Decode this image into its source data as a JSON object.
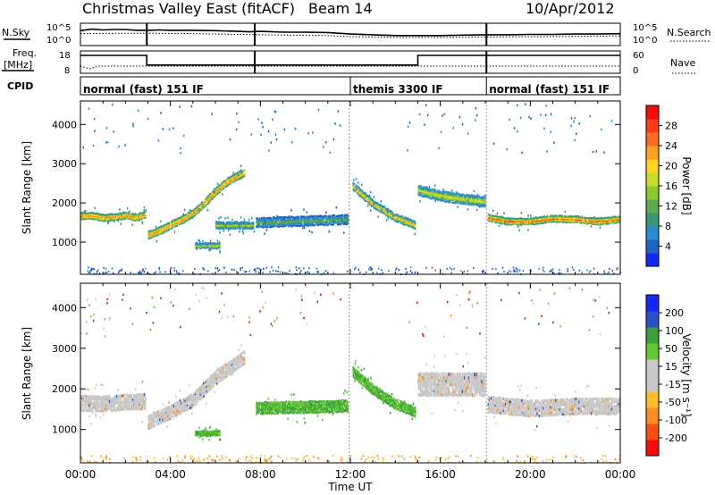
{
  "header": {
    "title": "Christmas Valley East (fitACF)",
    "beam": "Beam 14",
    "date": "10/Apr/2012"
  },
  "chart_data": [
    {
      "id": "noise-panel",
      "type": "line",
      "left_label": "N.Sky",
      "right_label": "N.Search",
      "y_ticks_left": [
        "10^5",
        "10^0"
      ],
      "y_ticks_right": [
        "10^5",
        "10^0"
      ],
      "ylim_log10": [
        0,
        5
      ],
      "series": [
        {
          "style": "solid",
          "x_hours": [
            0,
            0.5,
            1,
            1.5,
            2,
            2.5,
            3,
            3.5,
            4,
            5,
            6,
            7,
            7.5,
            8,
            9,
            10,
            11,
            12,
            13,
            14,
            15,
            16,
            17,
            18,
            19,
            20,
            21,
            22,
            23,
            24
          ],
          "values_log10": [
            3.5,
            3.9,
            3.7,
            3.8,
            3.8,
            3.6,
            3.6,
            3.7,
            3.6,
            3.6,
            3.5,
            3.3,
            3.2,
            3.3,
            3.1,
            3.1,
            3.0,
            2.6,
            2.4,
            2.2,
            2.2,
            2.2,
            2.3,
            2.4,
            2.4,
            2.5,
            2.5,
            2.6,
            2.6,
            2.7
          ]
        },
        {
          "style": "dotted",
          "x_hours": [
            0,
            2,
            3,
            5,
            7,
            9,
            11,
            12,
            14,
            16,
            18,
            20,
            22,
            24
          ],
          "values_log10": [
            2.7,
            2.8,
            2.8,
            2.7,
            2.5,
            2.3,
            2.2,
            1.9,
            1.7,
            1.7,
            1.8,
            1.9,
            2.0,
            2.1
          ]
        }
      ],
      "gaps_hours": [
        2.95,
        7.75,
        18.05
      ]
    },
    {
      "id": "freq-panel",
      "type": "line",
      "left_label_1": "Freq.",
      "left_label_2": "[MHz]",
      "right_label": "Nave",
      "y_ticks_left": [
        "18",
        "8"
      ],
      "y_ticks_right": [
        "60",
        "0"
      ],
      "series": [
        {
          "name": "Freq.",
          "style": "solid",
          "x_hours": [
            0,
            2.95,
            2.95,
            15,
            15,
            24
          ],
          "values_mhz": [
            18,
            18,
            12,
            12,
            18,
            18
          ]
        },
        {
          "name": "Nave",
          "style": "dotted",
          "x_hours": [
            0,
            0.4,
            0.8,
            24
          ],
          "values": [
            20,
            10,
            20,
            20
          ]
        }
      ]
    },
    {
      "id": "cpid-panel",
      "type": "table",
      "label": "CPID",
      "segments": [
        {
          "start_hour": 0,
          "end_hour": 12.0,
          "name": "normal (fast) 151 IF"
        },
        {
          "start_hour": 12.0,
          "end_hour": 18.05,
          "name": "themis 3300 IF"
        },
        {
          "start_hour": 18.05,
          "end_hour": 24,
          "name": "normal (fast) 151 IF"
        }
      ]
    },
    {
      "id": "power-panel",
      "type": "heatmap",
      "ylabel": "Slant Range [km]",
      "xlabel": "",
      "y_ticks": [
        "1000",
        "2000",
        "3000",
        "4000"
      ],
      "ylim_km": [
        180,
        4600
      ],
      "colorbar": {
        "label": "Power [dB]",
        "ticks": [
          "4",
          "8",
          "12",
          "16",
          "20",
          "24",
          "28"
        ],
        "range": [
          0,
          32
        ],
        "colors": [
          "#1428ff",
          "#1e64c8",
          "#2a8cd2",
          "#3c9678",
          "#5aaa50",
          "#8cc832",
          "#c8dc28",
          "#ffd21e",
          "#ffa01e",
          "#ff6e1e",
          "#ff3c14",
          "#ff0a0a"
        ]
      },
      "bands": [
        {
          "t": [
            0,
            0.5,
            1,
            1.5,
            2,
            2.5,
            2.9
          ],
          "center_km": [
            1680,
            1700,
            1640,
            1660,
            1700,
            1650,
            1720
          ],
          "width_km": 150,
          "peak_db": 26
        },
        {
          "t": [
            3.0,
            3.5,
            4,
            4.5,
            5,
            5.5,
            6,
            6.5,
            7.3
          ],
          "center_km": [
            1200,
            1300,
            1450,
            1580,
            1750,
            2000,
            2300,
            2550,
            2800
          ],
          "width_km": 170,
          "peak_db": 24
        },
        {
          "t": [
            5.1,
            6.2
          ],
          "center_km": [
            930,
            930
          ],
          "width_km": 110,
          "peak_db": 20
        },
        {
          "t": [
            6.0,
            7.7
          ],
          "center_km": [
            1450,
            1450
          ],
          "width_km": 160,
          "peak_db": 16
        },
        {
          "t": [
            7.8,
            11.9
          ],
          "center_km": [
            1520,
            1600
          ],
          "width_km": 220,
          "peak_db": 12
        },
        {
          "t": [
            12.1,
            13,
            14,
            14.9
          ],
          "center_km": [
            2450,
            2000,
            1650,
            1450
          ],
          "width_km": 170,
          "peak_db": 22
        },
        {
          "t": [
            15.0,
            16,
            18.0
          ],
          "center_km": [
            2350,
            2200,
            2050
          ],
          "width_km": 230,
          "peak_db": 18
        },
        {
          "t": [
            18.1,
            19,
            20,
            21,
            22,
            23,
            24
          ],
          "center_km": [
            1650,
            1550,
            1550,
            1620,
            1600,
            1550,
            1600
          ],
          "width_km": 150,
          "peak_db": 27
        }
      ]
    },
    {
      "id": "velocity-panel",
      "type": "heatmap",
      "ylabel": "Slant Range [km]",
      "xlabel": "Time UT",
      "y_ticks": [
        "1000",
        "2000",
        "3000",
        "4000"
      ],
      "ylim_km": [
        180,
        4600
      ],
      "x_ticks": [
        "00:00",
        "04:00",
        "08:00",
        "12:00",
        "16:00",
        "20:00",
        "00:00"
      ],
      "colorbar": {
        "label": "Velocity [m s⁻¹]",
        "ticks": [
          "-200",
          "-100",
          "-50",
          "-15",
          "15",
          "50",
          "100",
          "200"
        ],
        "colors": [
          "#ff0a0a",
          "#ff5014",
          "#ff8c1e",
          "#ffbe28",
          "#c8c8c8",
          "#c8c8c8",
          "#64c832",
          "#3ca03c",
          "#2850c8",
          "#1428ff"
        ]
      },
      "bands": [
        {
          "t": [
            0,
            1,
            2,
            2.9
          ],
          "center_km": [
            1680,
            1660,
            1700,
            1720
          ],
          "width_km": 340,
          "class": "ground"
        },
        {
          "t": [
            3.0,
            4,
            5,
            6,
            7.3
          ],
          "center_km": [
            1200,
            1450,
            1750,
            2300,
            2800
          ],
          "width_km": 300,
          "class": "ground"
        },
        {
          "t": [
            5.1,
            6.2
          ],
          "center_km": [
            930,
            930
          ],
          "width_km": 110,
          "class": "green"
        },
        {
          "t": [
            7.8,
            11.9
          ],
          "center_km": [
            1550,
            1600
          ],
          "width_km": 260,
          "class": "green"
        },
        {
          "t": [
            12.1,
            13,
            14,
            14.9
          ],
          "center_km": [
            2450,
            2000,
            1650,
            1450
          ],
          "width_km": 220,
          "class": "green"
        },
        {
          "t": [
            15.0,
            18.0
          ],
          "center_km": [
            2150,
            2150
          ],
          "width_km": 500,
          "class": "ground"
        },
        {
          "t": [
            18.1,
            20,
            22,
            24
          ],
          "center_km": [
            1650,
            1550,
            1600,
            1600
          ],
          "width_km": 360,
          "class": "ground"
        }
      ]
    }
  ]
}
